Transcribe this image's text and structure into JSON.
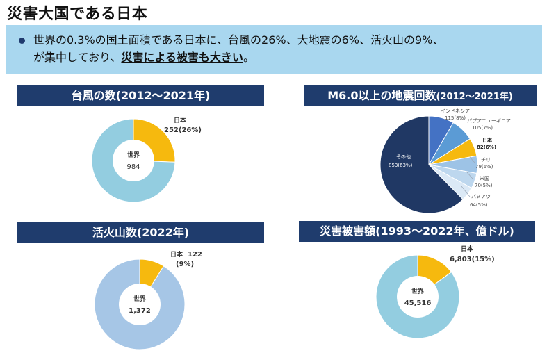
{
  "page": {
    "title": "災害大国である日本"
  },
  "summary": {
    "line1": "世界の0.3%の国土面積である日本に、台風の26%、大地震の6%、活火山の9%、",
    "line2_prefix": "が集中しており、",
    "line2_highlight": "災害による被害も大きい",
    "line2_suffix": "。"
  },
  "colors": {
    "header_bg": "#1f3c6d",
    "summary_bg": "#a9d7ef",
    "japan": "#f6b90e",
    "world_light": "#93cde0",
    "world_volcano": "#a6c6e6"
  },
  "chart_data": [
    {
      "type": "pie",
      "title": "台風の数(2012〜2021年)",
      "center_label": "世界",
      "center_value": "984",
      "slices": [
        {
          "name": "日本",
          "value": 252,
          "label": "252(26%)"
        },
        {
          "name": "",
          "value": 732,
          "label": ""
        }
      ],
      "colors": [
        "#f6b90e",
        "#93cde0"
      ]
    },
    {
      "type": "pie",
      "title": "M6.0以上の地震回数",
      "title_suffix": "(2012〜2021年)",
      "slices": [
        {
          "name": "インドネシア",
          "value": 115,
          "label": "115(8%)"
        },
        {
          "name": "パプアニューギニア",
          "value": 105,
          "label": "105(7%)"
        },
        {
          "name": "日本",
          "value": 82,
          "label": "82(6%)"
        },
        {
          "name": "チリ",
          "value": 79,
          "label": "79(6%)"
        },
        {
          "name": "米国",
          "value": 70,
          "label": "70(5%)"
        },
        {
          "name": "バヌアツ",
          "value": 64,
          "label": "64(5%)"
        },
        {
          "name": "その他",
          "value": 853,
          "label": "853(63%)"
        }
      ],
      "colors": [
        "#4472c4",
        "#5b9bd5",
        "#f6b90e",
        "#9dc3e6",
        "#bdd7ee",
        "#dbe9f6",
        "#203864"
      ]
    },
    {
      "type": "pie",
      "title": "活火山数(2022年)",
      "center_label": "世界",
      "center_value": "1,372",
      "slices": [
        {
          "name": "日本",
          "value": 122,
          "label": "122",
          "pct": "(9%)"
        },
        {
          "name": "",
          "value": 1250,
          "label": ""
        }
      ],
      "colors": [
        "#f6b90e",
        "#a6c6e6"
      ]
    },
    {
      "type": "pie",
      "title": "災害被害額(1993〜2022年、億ドル)",
      "center_label": "世界",
      "center_value": "45,516",
      "slices": [
        {
          "name": "日本",
          "value": 6803,
          "label": "6,803(15%)"
        },
        {
          "name": "",
          "value": 38713,
          "label": ""
        }
      ],
      "colors": [
        "#f6b90e",
        "#93cde0"
      ]
    }
  ]
}
